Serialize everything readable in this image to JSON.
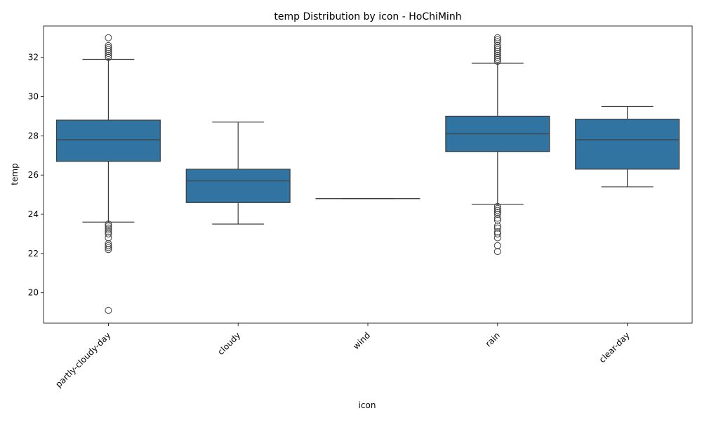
{
  "chart_data": {
    "type": "box",
    "title": "temp Distribution by icon - HoChiMinh",
    "xlabel": "icon",
    "ylabel": "temp",
    "ylim": [
      18.45,
      33.6
    ],
    "yticks": [
      20,
      22,
      24,
      26,
      28,
      30,
      32
    ],
    "grid": false,
    "legend": "none",
    "box_color": "#3274a1",
    "line_color": "#3d3d3d",
    "categories": [
      "partly-cloudy-day",
      "cloudy",
      "wind",
      "rain",
      "clear-day"
    ],
    "boxes": [
      {
        "category": "partly-cloudy-day",
        "whisker_low": 23.6,
        "q1": 26.7,
        "median": 27.8,
        "q3": 28.8,
        "whisker_high": 31.9,
        "outliers": [
          33.0,
          32.6,
          32.5,
          32.4,
          32.3,
          32.2,
          32.1,
          32.0,
          23.5,
          23.4,
          23.3,
          23.2,
          23.1,
          23.0,
          22.8,
          22.5,
          22.4,
          22.3,
          22.2,
          19.1
        ]
      },
      {
        "category": "cloudy",
        "whisker_low": 23.5,
        "q1": 24.6,
        "median": 25.7,
        "q3": 26.3,
        "whisker_high": 28.7,
        "outliers": []
      },
      {
        "category": "wind",
        "whisker_low": 24.8,
        "q1": 24.8,
        "median": 24.8,
        "q3": 24.8,
        "whisker_high": 24.8,
        "outliers": []
      },
      {
        "category": "rain",
        "whisker_low": 24.5,
        "q1": 27.2,
        "median": 28.1,
        "q3": 29.0,
        "whisker_high": 31.7,
        "outliers": [
          33.0,
          32.9,
          32.8,
          32.6,
          32.5,
          32.4,
          32.3,
          32.2,
          32.1,
          32.0,
          31.9,
          31.8,
          24.4,
          24.3,
          24.2,
          24.1,
          24.0,
          23.8,
          23.7,
          23.4,
          23.3,
          23.1,
          23.0,
          22.8,
          22.4,
          22.1
        ]
      },
      {
        "category": "clear-day",
        "whisker_low": 25.4,
        "q1": 26.3,
        "median": 27.8,
        "q3": 28.85,
        "whisker_high": 29.5,
        "outliers": []
      }
    ]
  }
}
